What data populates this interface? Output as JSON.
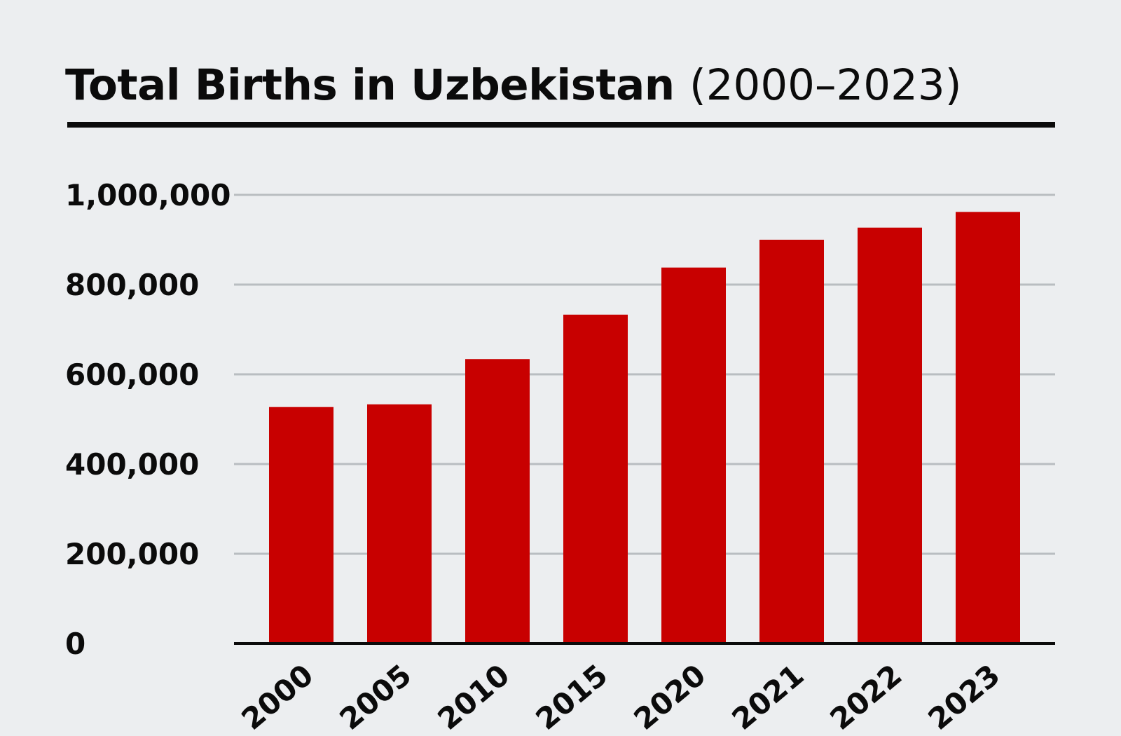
{
  "colors": {
    "background": "#eceef0",
    "bar": "#c80000",
    "gridline": "#b9bdc1",
    "axis": "#0b0b0b",
    "text": "#0b0b0b"
  },
  "chart_data": {
    "type": "bar",
    "title": "Total Births in Uzbekistan",
    "subtitle": "(2000–2023)",
    "xlabel": "",
    "ylabel": "",
    "categories": [
      "2000",
      "2005",
      "2010",
      "2015",
      "2020",
      "2021",
      "2022",
      "2023"
    ],
    "values": [
      527000,
      533000,
      634000,
      733000,
      838000,
      900000,
      927000,
      962000
    ],
    "ylim": [
      0,
      1000000
    ],
    "yticks": [
      0,
      200000,
      400000,
      600000,
      800000,
      1000000
    ],
    "ytick_labels": [
      "0",
      "200,000",
      "400,000",
      "600,000",
      "800,000",
      "1,000,000"
    ],
    "grid": true,
    "legend": "none"
  }
}
